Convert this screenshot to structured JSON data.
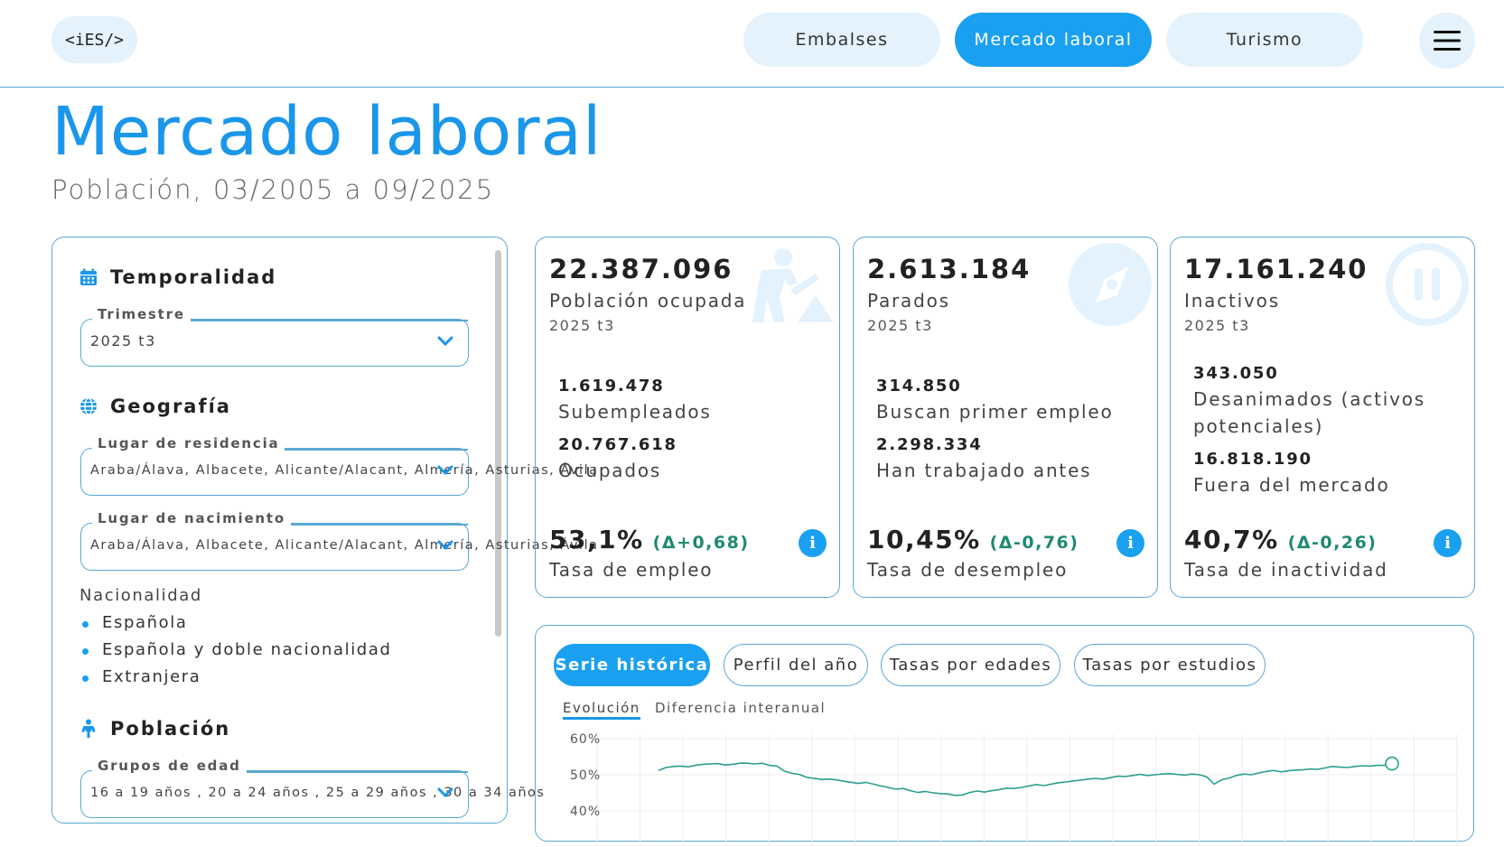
{
  "header": {
    "logo": "<iES/>",
    "nav": [
      "Embalses",
      "Mercado laboral",
      "Turismo"
    ],
    "active_nav": "Mercado laboral"
  },
  "page": {
    "title": "Mercado laboral",
    "subtitle": "Población, 03/2005 a 09/2025"
  },
  "filters": {
    "temporalidad": {
      "title": "Temporalidad",
      "trimestre_label": "Trimestre",
      "trimestre_value": "2025 t3"
    },
    "geografia": {
      "title": "Geografía",
      "residencia_label": "Lugar de residencia",
      "residencia_value": "Araba/Álava, Albacete, Alicante/Alacant, Almería, Asturias, Ávila",
      "nacimiento_label": "Lugar de nacimiento",
      "nacimiento_value": "Araba/Álava, Albacete, Alicante/Alacant, Almería, Asturias, Ávila"
    },
    "nacionalidad": {
      "label": "Nacionalidad",
      "items": [
        "Española",
        "Española y doble nacionalidad",
        "Extranjera"
      ]
    },
    "poblacion": {
      "title": "Población",
      "edad_label": "Grupos de edad",
      "edad_value": "16 a 19 años , 20 a 24 años , 25 a 29 años , 30 a 34 años"
    }
  },
  "cards": [
    {
      "main": "22.387.096",
      "label": "Población ocupada",
      "period": "2025 t3",
      "sub": [
        {
          "value": "1.619.478",
          "label": "Subempleados"
        },
        {
          "value": "20.767.618",
          "label": "Ocupados"
        }
      ],
      "rate": "53,1%",
      "delta": "(Δ+0,68)",
      "rate_label": "Tasa de empleo",
      "icon": "worker-digging-icon"
    },
    {
      "main": "2.613.184",
      "label": "Parados",
      "period": "2025 t3",
      "sub": [
        {
          "value": "314.850",
          "label": "Buscan primer empleo"
        },
        {
          "value": "2.298.334",
          "label": "Han trabajado antes"
        }
      ],
      "rate": "10,45%",
      "delta": "(Δ-0,76)",
      "rate_label": "Tasa de desempleo",
      "icon": "compass-icon"
    },
    {
      "main": "17.161.240",
      "label": "Inactivos",
      "period": "2025 t3",
      "sub": [
        {
          "value": "343.050",
          "label": "Desanimados (activos potenciales)"
        },
        {
          "value": "16.818.190",
          "label": "Fuera del mercado"
        }
      ],
      "rate": "40,7%",
      "delta": "(Δ-0,26)",
      "rate_label": "Tasa de inactividad",
      "icon": "pause-circle-icon"
    }
  ],
  "chart_panel": {
    "tabs": [
      "Serie histórica",
      "Perfil del año",
      "Tasas por edades",
      "Tasas por estudios"
    ],
    "active_tab": "Serie histórica",
    "subtabs": [
      "Evolución",
      "Diferencia interanual"
    ],
    "active_subtab": "Evolución"
  },
  "chart_data": {
    "type": "line",
    "title": "",
    "xlabel": "",
    "ylabel": "",
    "yticks": [
      "60%",
      "50%",
      "40%"
    ],
    "ylim": [
      40,
      60
    ],
    "x_range": [
      "2005 t1",
      "2025 t3"
    ],
    "series": [
      {
        "color": "#2a9d8f",
        "values": [
          51.2,
          52.0,
          52.3,
          52.4,
          52.2,
          52.6,
          52.9,
          53.0,
          53.1,
          52.7,
          52.9,
          53.2,
          53.2,
          53.0,
          53.2,
          52.6,
          52.4,
          51.0,
          50.4,
          50.1,
          49.3,
          49.0,
          48.7,
          48.8,
          48.6,
          48.2,
          47.9,
          47.6,
          47.9,
          47.4,
          46.9,
          46.5,
          46.0,
          46.2,
          45.6,
          45.1,
          45.4,
          45.0,
          44.8,
          44.7,
          44.3,
          44.4,
          45.1,
          45.5,
          45.2,
          45.6,
          45.9,
          46.3,
          46.2,
          46.5,
          46.9,
          47.3,
          47.0,
          47.4,
          47.8,
          48.0,
          48.3,
          48.5,
          48.8,
          49.0,
          48.8,
          49.2,
          49.6,
          49.5,
          49.8,
          50.1,
          49.8,
          50.0,
          50.2,
          50.3,
          50.1,
          49.9,
          50.2,
          50.0,
          49.4,
          47.4,
          48.6,
          49.1,
          49.8,
          50.2,
          50.0,
          50.5,
          50.9,
          51.2,
          50.8,
          51.1,
          51.3,
          51.4,
          51.6,
          51.5,
          51.9,
          52.3,
          52.1,
          52.0,
          52.3,
          52.5,
          52.4,
          52.6,
          52.6,
          53.1
        ]
      }
    ],
    "grid": true,
    "legend": "none"
  }
}
